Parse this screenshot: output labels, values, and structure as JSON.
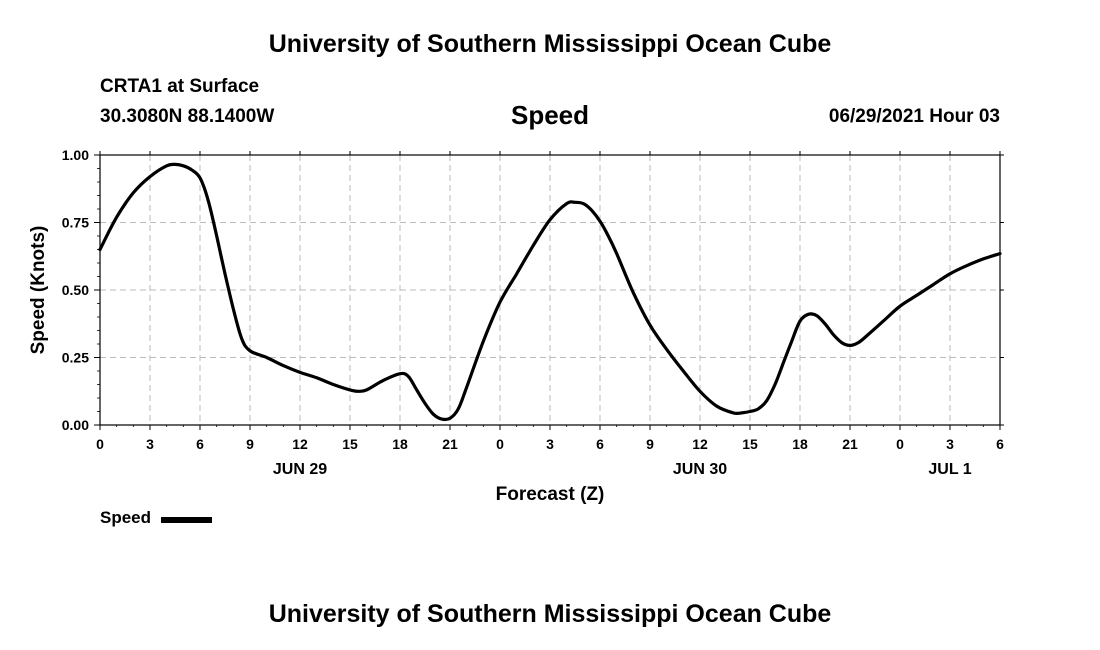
{
  "header": {
    "title": "University of Southern Mississippi Ocean Cube",
    "station": "CRTA1 at Surface",
    "coords": "30.3080N  88.1400W",
    "datetime": "06/29/2021 Hour 03"
  },
  "footer": {
    "title": "University of Southern Mississippi Ocean Cube"
  },
  "colors": {
    "line": "#000000",
    "grid": "#bbbbbb"
  },
  "chart_data": {
    "type": "line",
    "title": "Speed",
    "xlabel": "Forecast (Z)",
    "ylabel": "Speed (Knots)",
    "xlim": [
      0,
      54
    ],
    "ylim": [
      0,
      1
    ],
    "grid": true,
    "legend": "bottom-left",
    "x_ticks": [
      {
        "x": 0,
        "label": "0"
      },
      {
        "x": 3,
        "label": "3"
      },
      {
        "x": 6,
        "label": "6"
      },
      {
        "x": 9,
        "label": "9"
      },
      {
        "x": 12,
        "label": "12"
      },
      {
        "x": 15,
        "label": "15"
      },
      {
        "x": 18,
        "label": "18"
      },
      {
        "x": 21,
        "label": "21"
      },
      {
        "x": 24,
        "label": "0"
      },
      {
        "x": 27,
        "label": "3"
      },
      {
        "x": 30,
        "label": "6"
      },
      {
        "x": 33,
        "label": "9"
      },
      {
        "x": 36,
        "label": "12"
      },
      {
        "x": 39,
        "label": "15"
      },
      {
        "x": 42,
        "label": "18"
      },
      {
        "x": 45,
        "label": "21"
      },
      {
        "x": 48,
        "label": "0"
      },
      {
        "x": 51,
        "label": "3"
      },
      {
        "x": 54,
        "label": "6"
      }
    ],
    "y_ticks": [
      {
        "y": 0,
        "label": "0.00"
      },
      {
        "y": 0.25,
        "label": "0.25"
      },
      {
        "y": 0.5,
        "label": "0.50"
      },
      {
        "y": 0.75,
        "label": "0.75"
      },
      {
        "y": 1.0,
        "label": "1.00"
      }
    ],
    "date_labels": [
      {
        "x": 12,
        "label": "JUN 29"
      },
      {
        "x": 36,
        "label": "JUN 30"
      },
      {
        "x": 51,
        "label": "JUL 1"
      }
    ],
    "series": [
      {
        "name": "Speed",
        "x": [
          0,
          1,
          2,
          3,
          4,
          4.5,
          5,
          5.5,
          6,
          6.5,
          7,
          7.5,
          8,
          8.5,
          9,
          10,
          11,
          12,
          13,
          14,
          15,
          15.5,
          16,
          17,
          18,
          18.5,
          19,
          19.5,
          20,
          20.5,
          21,
          21.5,
          22,
          23,
          24,
          25,
          26,
          27,
          28,
          28.5,
          29,
          29.5,
          30,
          30.5,
          31,
          32,
          33,
          34,
          35,
          36,
          37,
          38,
          38.5,
          39,
          39.5,
          40,
          40.5,
          41,
          41.5,
          42,
          42.5,
          43,
          43.5,
          44,
          44.5,
          45,
          45.5,
          46,
          47,
          48,
          49,
          50,
          51,
          52,
          53,
          54
        ],
        "values": [
          0.65,
          0.77,
          0.86,
          0.92,
          0.96,
          0.965,
          0.96,
          0.945,
          0.915,
          0.83,
          0.7,
          0.56,
          0.43,
          0.32,
          0.275,
          0.25,
          0.22,
          0.195,
          0.175,
          0.15,
          0.13,
          0.125,
          0.13,
          0.165,
          0.19,
          0.18,
          0.13,
          0.08,
          0.04,
          0.022,
          0.025,
          0.06,
          0.14,
          0.31,
          0.455,
          0.56,
          0.665,
          0.76,
          0.82,
          0.825,
          0.82,
          0.795,
          0.755,
          0.7,
          0.635,
          0.49,
          0.37,
          0.28,
          0.2,
          0.125,
          0.07,
          0.045,
          0.045,
          0.05,
          0.06,
          0.09,
          0.15,
          0.23,
          0.31,
          0.385,
          0.41,
          0.405,
          0.375,
          0.335,
          0.305,
          0.295,
          0.305,
          0.33,
          0.385,
          0.44,
          0.48,
          0.52,
          0.56,
          0.59,
          0.615,
          0.635
        ]
      }
    ]
  }
}
